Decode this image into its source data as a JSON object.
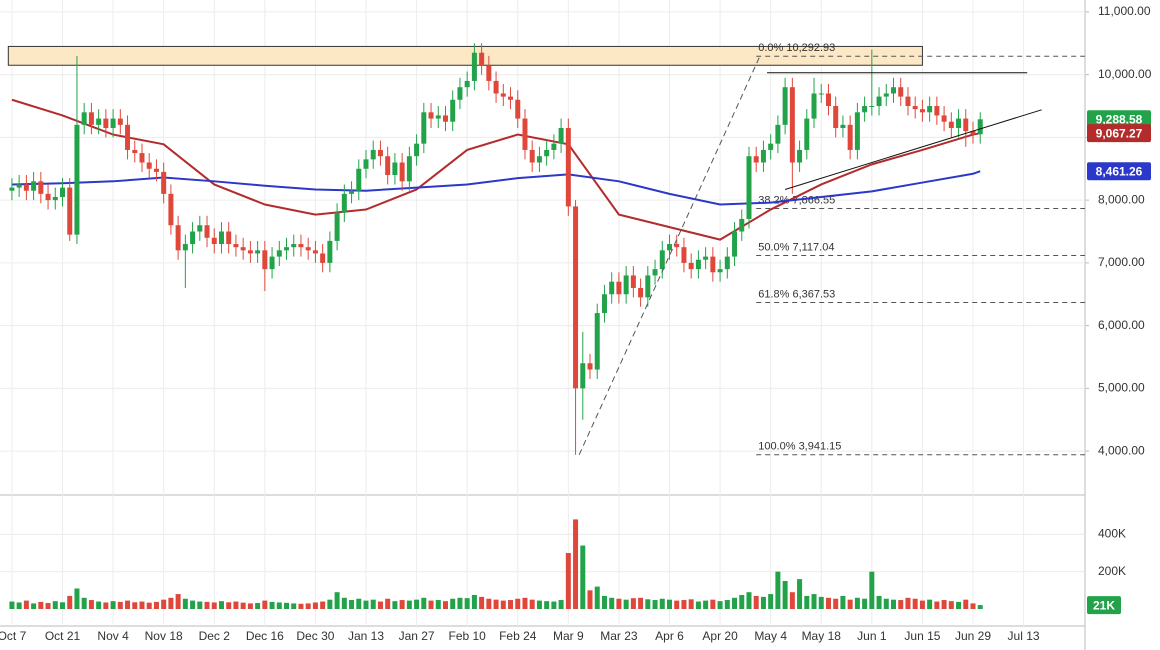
{
  "chart_data": {
    "type": "candlestick",
    "xlim": [
      -3.3,
      297
    ],
    "ylim": [
      3300,
      11190
    ],
    "xticks": [
      {
        "value": 0,
        "label": "Oct 7"
      },
      {
        "value": 14,
        "label": "Oct 21"
      },
      {
        "value": 28,
        "label": "Nov 4"
      },
      {
        "value": 42,
        "label": "Nov 18"
      },
      {
        "value": 56,
        "label": "Dec 2"
      },
      {
        "value": 70,
        "label": "Dec 16"
      },
      {
        "value": 84,
        "label": "Dec 30"
      },
      {
        "value": 98,
        "label": "Jan 13"
      },
      {
        "value": 112,
        "label": "Jan 27"
      },
      {
        "value": 126,
        "label": "Feb 10"
      },
      {
        "value": 140,
        "label": "Feb 24"
      },
      {
        "value": 154,
        "label": "Mar 9"
      },
      {
        "value": 168,
        "label": "Mar 23"
      },
      {
        "value": 182,
        "label": "Apr 6"
      },
      {
        "value": 196,
        "label": "Apr 20"
      },
      {
        "value": 210,
        "label": "May 4"
      },
      {
        "value": 224,
        "label": "May 18"
      },
      {
        "value": 238,
        "label": "Jun 1"
      },
      {
        "value": 252,
        "label": "Jun 15"
      },
      {
        "value": 266,
        "label": "Jun 29"
      },
      {
        "value": 280,
        "label": "Jul 13"
      }
    ],
    "yticks": [
      {
        "value": 11000,
        "label": "11,000.00"
      },
      {
        "value": 10000,
        "label": "10,000.00"
      },
      {
        "value": 9000,
        "label": "9,000.00"
      },
      {
        "value": 8000,
        "label": "8,000.00"
      },
      {
        "value": 7000,
        "label": "7,000.00"
      },
      {
        "value": 6000,
        "label": "6,000.00"
      },
      {
        "value": 5000,
        "label": "5,000.00"
      },
      {
        "value": 4000,
        "label": "4,000.00"
      }
    ],
    "grid": true,
    "up_color": "#22a34a",
    "down_color": "#e0473b",
    "x": [
      0,
      2,
      4,
      6,
      8,
      10,
      12,
      14,
      16,
      18,
      20,
      22,
      24,
      26,
      28,
      30,
      32,
      34,
      36,
      38,
      40,
      42,
      44,
      46,
      48,
      50,
      52,
      54,
      56,
      58,
      60,
      62,
      64,
      66,
      68,
      70,
      72,
      74,
      76,
      78,
      80,
      82,
      84,
      86,
      88,
      90,
      92,
      94,
      96,
      98,
      100,
      102,
      104,
      106,
      108,
      110,
      112,
      114,
      116,
      118,
      120,
      122,
      124,
      126,
      128,
      130,
      132,
      134,
      136,
      138,
      140,
      142,
      144,
      146,
      148,
      150,
      152,
      154,
      156,
      158,
      160,
      162,
      164,
      166,
      168,
      170,
      172,
      174,
      176,
      178,
      180,
      182,
      184,
      186,
      188,
      190,
      192,
      194,
      196,
      198,
      200,
      202,
      204,
      206,
      208,
      210,
      212,
      214,
      216,
      218,
      220,
      222,
      224,
      226,
      228,
      230,
      232,
      234,
      236,
      238,
      240,
      242,
      244,
      246,
      248,
      250,
      252,
      254,
      256,
      258,
      260,
      262,
      264,
      266,
      268
    ],
    "open": [
      8150,
      8200,
      8250,
      8150,
      8300,
      8100,
      8000,
      8050,
      8200,
      7450,
      9200,
      9400,
      9200,
      9300,
      9150,
      9300,
      9200,
      8800,
      8750,
      8600,
      8500,
      8450,
      8100,
      7600,
      7200,
      7300,
      7500,
      7600,
      7400,
      7300,
      7500,
      7300,
      7250,
      7200,
      7150,
      7200,
      6900,
      7100,
      7200,
      7250,
      7300,
      7250,
      7200,
      7150,
      7000,
      7350,
      7800,
      8100,
      8150,
      8500,
      8650,
      8800,
      8700,
      8400,
      8600,
      8300,
      8700,
      8900,
      9400,
      9300,
      9350,
      9250,
      9600,
      9800,
      9900,
      10350,
      10150,
      9900,
      9700,
      9650,
      9600,
      9300,
      8800,
      8600,
      8700,
      8800,
      8900,
      9150,
      7900,
      5000,
      5400,
      5300,
      6200,
      6500,
      6700,
      6500,
      6800,
      6600,
      6450,
      6800,
      6900,
      7200,
      7300,
      7250,
      7000,
      6900,
      7050,
      7100,
      6850,
      6900,
      7100,
      7500,
      7700,
      8700,
      8600,
      8800,
      8900,
      9200,
      9800,
      8600,
      8800,
      9300,
      9700,
      9700,
      9500,
      9150,
      9200,
      8800,
      9400,
      9500,
      9500,
      9650,
      9700,
      9800,
      9650,
      9500,
      9450,
      9400,
      9500,
      9350,
      9250,
      9150,
      9300,
      9100,
      9050
    ],
    "high": [
      8350,
      8400,
      8400,
      8450,
      8450,
      8250,
      8200,
      8350,
      8350,
      10300,
      9550,
      9550,
      9450,
      9450,
      9450,
      9450,
      9350,
      8950,
      8900,
      8750,
      8650,
      8600,
      8250,
      7750,
      7450,
      7650,
      7750,
      7750,
      7550,
      7650,
      7650,
      7450,
      7400,
      7350,
      7350,
      7350,
      7250,
      7350,
      7400,
      7450,
      7450,
      7400,
      7350,
      7300,
      7500,
      7950,
      8250,
      8300,
      8650,
      8800,
      8950,
      8950,
      8850,
      8750,
      8750,
      8850,
      9050,
      9550,
      9550,
      9500,
      9500,
      9750,
      9950,
      10050,
      10500,
      10500,
      10300,
      10050,
      9850,
      9800,
      9750,
      9450,
      8950,
      8850,
      8950,
      9050,
      9300,
      9300,
      8000,
      5900,
      5550,
      6350,
      6650,
      6850,
      6850,
      6950,
      6950,
      6750,
      6950,
      7050,
      7350,
      7450,
      7450,
      7400,
      7150,
      7200,
      7250,
      7250,
      7050,
      7250,
      7650,
      7850,
      8850,
      8850,
      8950,
      9050,
      9350,
      9950,
      9950,
      8950,
      9450,
      9950,
      9850,
      9850,
      9650,
      9350,
      9350,
      9550,
      9650,
      10400,
      9800,
      9850,
      9950,
      9950,
      9800,
      9650,
      9600,
      9650,
      9650,
      9500,
      9400,
      9450,
      9450,
      9250,
      9400
    ],
    "low": [
      8000,
      8050,
      8000,
      8000,
      7950,
      7850,
      7850,
      7900,
      7350,
      7300,
      9050,
      9050,
      9050,
      9000,
      9000,
      9050,
      8650,
      8600,
      8450,
      8350,
      8300,
      7950,
      7450,
      7050,
      6600,
      7150,
      7350,
      7250,
      7150,
      7150,
      7150,
      7100,
      7050,
      7000,
      7000,
      6550,
      6750,
      6950,
      7050,
      7100,
      7100,
      7050,
      7000,
      6850,
      6850,
      7200,
      7650,
      7950,
      8000,
      8350,
      8500,
      8550,
      8250,
      8250,
      8150,
      8150,
      8550,
      8750,
      9150,
      9150,
      9100,
      9100,
      9450,
      9650,
      9750,
      10000,
      9750,
      9550,
      9500,
      9450,
      9150,
      8650,
      8450,
      8450,
      8550,
      8650,
      8750,
      7750,
      3941.15,
      4500,
      5150,
      5150,
      6050,
      6350,
      6350,
      6350,
      6450,
      6300,
      6300,
      6650,
      6750,
      7050,
      7100,
      6850,
      6750,
      6750,
      6900,
      6700,
      6700,
      6750,
      6950,
      7350,
      7550,
      8450,
      8450,
      8650,
      8750,
      9050,
      8100,
      8450,
      8650,
      9150,
      9550,
      9350,
      9000,
      9000,
      8650,
      8650,
      9250,
      9350,
      9350,
      9500,
      9550,
      9500,
      9350,
      9300,
      9250,
      9250,
      9200,
      9100,
      9000,
      9000,
      8850,
      8900,
      8900
    ],
    "close": [
      8200,
      8250,
      8150,
      8300,
      8100,
      8000,
      8050,
      8200,
      7450,
      9200,
      9400,
      9200,
      9300,
      9150,
      9300,
      9200,
      8800,
      8750,
      8600,
      8500,
      8450,
      8100,
      7600,
      7200,
      7300,
      7500,
      7600,
      7400,
      7300,
      7500,
      7300,
      7250,
      7200,
      7150,
      7200,
      6900,
      7100,
      7200,
      7250,
      7300,
      7250,
      7200,
      7150,
      7000,
      7350,
      7800,
      8100,
      8150,
      8500,
      8650,
      8800,
      8700,
      8400,
      8600,
      8300,
      8700,
      8900,
      9400,
      9300,
      9350,
      9250,
      9600,
      9800,
      9900,
      10350,
      10150,
      9900,
      9700,
      9650,
      9600,
      9300,
      8800,
      8600,
      8700,
      8800,
      8900,
      9150,
      7900,
      5000,
      5400,
      5300,
      6200,
      6500,
      6700,
      6500,
      6800,
      6600,
      6450,
      6800,
      6900,
      7200,
      7300,
      7250,
      7000,
      6900,
      7050,
      7100,
      6850,
      6900,
      7100,
      7500,
      7700,
      8700,
      8600,
      8800,
      8900,
      9200,
      9800,
      8600,
      8800,
      9300,
      9700,
      9700,
      9500,
      9150,
      9200,
      8800,
      9400,
      9500,
      9500,
      9650,
      9700,
      9800,
      9650,
      9500,
      9450,
      9400,
      9500,
      9350,
      9250,
      9150,
      9300,
      9100,
      9050,
      9288.58
    ],
    "volume": {
      "ylim": [
        0,
        600000
      ],
      "yticks": [
        {
          "value": 200000,
          "label": "200K"
        },
        {
          "value": 400000,
          "label": "400K"
        }
      ],
      "values": [
        40000,
        35000,
        45000,
        30000,
        38000,
        32000,
        42000,
        36000,
        70000,
        110000,
        60000,
        48000,
        40000,
        35000,
        42000,
        38000,
        45000,
        36000,
        40000,
        34000,
        38000,
        50000,
        60000,
        80000,
        55000,
        45000,
        40000,
        38000,
        35000,
        42000,
        36000,
        40000,
        34000,
        30000,
        32000,
        45000,
        38000,
        35000,
        33000,
        30000,
        28000,
        30000,
        35000,
        40000,
        50000,
        90000,
        60000,
        48000,
        55000,
        45000,
        50000,
        40000,
        55000,
        42000,
        48000,
        45000,
        50000,
        60000,
        45000,
        48000,
        42000,
        55000,
        60000,
        58000,
        75000,
        65000,
        55000,
        50000,
        45000,
        48000,
        55000,
        60000,
        50000,
        45000,
        42000,
        40000,
        48000,
        300000,
        480000,
        340000,
        100000,
        120000,
        70000,
        60000,
        55000,
        50000,
        58000,
        60000,
        52000,
        48000,
        55000,
        50000,
        45000,
        48000,
        52000,
        40000,
        45000,
        50000,
        42000,
        48000,
        60000,
        75000,
        90000,
        70000,
        65000,
        80000,
        200000,
        150000,
        90000,
        160000,
        70000,
        80000,
        65000,
        60000,
        55000,
        70000,
        50000,
        60000,
        55000,
        200000,
        70000,
        55000,
        50000,
        48000,
        60000,
        55000,
        45000,
        50000,
        40000,
        48000,
        42000,
        38000,
        50000,
        30000,
        21000
      ]
    },
    "moving_averages": [
      {
        "color": "#b32b2b",
        "x": [
          0,
          14,
          28,
          42,
          56,
          70,
          84,
          98,
          112,
          126,
          140,
          154,
          168,
          182,
          196,
          210,
          224,
          238,
          252,
          266,
          268
        ],
        "values": [
          9600,
          9350,
          9045,
          8890,
          8250,
          7930,
          7770,
          7850,
          8170,
          8800,
          9045,
          8890,
          7770,
          7570,
          7370,
          7850,
          8250,
          8570,
          8800,
          9045,
          9067.27
        ]
      },
      {
        "color": "#2b38c9",
        "x": [
          0,
          14,
          28,
          42,
          56,
          70,
          84,
          98,
          112,
          126,
          140,
          154,
          168,
          182,
          196,
          210,
          224,
          238,
          252,
          266,
          268
        ],
        "values": [
          8250,
          8270,
          8300,
          8360,
          8300,
          8230,
          8170,
          8150,
          8200,
          8250,
          8350,
          8410,
          8300,
          8100,
          7930,
          7960,
          8050,
          8140,
          8280,
          8420,
          8461.26
        ]
      }
    ],
    "price_tags": [
      {
        "value": 9288.58,
        "label": "9,288.58",
        "color": "#22a34a"
      },
      {
        "value": 9067.27,
        "label": "9,067.27",
        "color": "#b32b2b"
      },
      {
        "value": 8461.26,
        "label": "8,461.26",
        "color": "#2b38c9"
      }
    ],
    "volume_tag": {
      "value": 21000,
      "label": "21K",
      "color": "#22a34a"
    },
    "fib_levels": [
      {
        "value": 10292.93,
        "label": "0.0% 10,292.93"
      },
      {
        "value": 7866.55,
        "label": "38.2% 7,866.55"
      },
      {
        "value": 7117.04,
        "label": "50.0% 7,117.04"
      },
      {
        "value": 6367.53,
        "label": "61.8% 6,367.53"
      },
      {
        "value": 3941.15,
        "label": "100.0% 3,941.15"
      }
    ],
    "fib_start_x": 206,
    "resistance_zone": {
      "x": [
        -1,
        252
      ],
      "y": [
        10150,
        10450
      ],
      "color": "#fde8c6"
    },
    "trendlines": [
      {
        "x": [
          157,
          207
        ],
        "y": [
          3941.15,
          10292.93
        ],
        "dashed": true
      },
      {
        "x": [
          209,
          281
        ],
        "y": [
          10030,
          10030
        ],
        "dashed": false
      },
      {
        "x": [
          214,
          285
        ],
        "y": [
          8170,
          9440
        ],
        "dashed": false
      }
    ]
  }
}
